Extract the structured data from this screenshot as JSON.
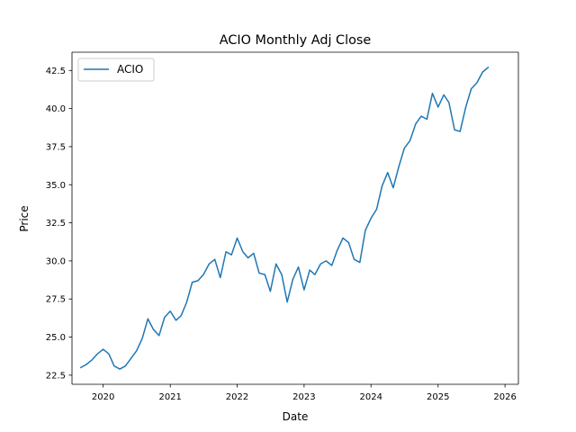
{
  "chart_data": {
    "type": "line",
    "title": "ACIO Monthly Adj Close",
    "xlabel": "Date",
    "ylabel": "Price",
    "x_tick_labels": [
      "2020",
      "2021",
      "2022",
      "2023",
      "2024",
      "2025",
      "2026"
    ],
    "y_tick_labels": [
      "22.5",
      "25.0",
      "27.5",
      "30.0",
      "32.5",
      "35.0",
      "37.5",
      "40.0",
      "42.5"
    ],
    "xlim": [
      "2019-07-15",
      "2026-03-15"
    ],
    "ylim": [
      21.9,
      43.7
    ],
    "grid": false,
    "legend_position": "top-left",
    "series": [
      {
        "name": "ACIO",
        "color": "#1f77b4",
        "points": [
          [
            "2019-09-01",
            23.0
          ],
          [
            "2019-10-01",
            23.2
          ],
          [
            "2019-11-01",
            23.5
          ],
          [
            "2019-12-01",
            23.9
          ],
          [
            "2020-01-01",
            24.2
          ],
          [
            "2020-02-01",
            23.9
          ],
          [
            "2020-03-01",
            23.1
          ],
          [
            "2020-04-01",
            22.9
          ],
          [
            "2020-05-01",
            23.1
          ],
          [
            "2020-06-01",
            23.6
          ],
          [
            "2020-07-01",
            24.1
          ],
          [
            "2020-08-01",
            24.9
          ],
          [
            "2020-09-01",
            26.2
          ],
          [
            "2020-10-01",
            25.5
          ],
          [
            "2020-11-01",
            25.1
          ],
          [
            "2020-12-01",
            26.3
          ],
          [
            "2021-01-01",
            26.7
          ],
          [
            "2021-02-01",
            26.1
          ],
          [
            "2021-03-01",
            26.4
          ],
          [
            "2021-04-01",
            27.3
          ],
          [
            "2021-05-01",
            28.6
          ],
          [
            "2021-06-01",
            28.7
          ],
          [
            "2021-07-01",
            29.1
          ],
          [
            "2021-08-01",
            29.8
          ],
          [
            "2021-09-01",
            30.1
          ],
          [
            "2021-10-01",
            28.9
          ],
          [
            "2021-11-01",
            30.6
          ],
          [
            "2021-12-01",
            30.4
          ],
          [
            "2022-01-01",
            31.5
          ],
          [
            "2022-02-01",
            30.6
          ],
          [
            "2022-03-01",
            30.2
          ],
          [
            "2022-04-01",
            30.5
          ],
          [
            "2022-05-01",
            29.2
          ],
          [
            "2022-06-01",
            29.1
          ],
          [
            "2022-07-01",
            28.0
          ],
          [
            "2022-08-01",
            29.8
          ],
          [
            "2022-09-01",
            29.1
          ],
          [
            "2022-10-01",
            27.3
          ],
          [
            "2022-11-01",
            28.8
          ],
          [
            "2022-12-01",
            29.6
          ],
          [
            "2023-01-01",
            28.1
          ],
          [
            "2023-02-01",
            29.4
          ],
          [
            "2023-03-01",
            29.1
          ],
          [
            "2023-04-01",
            29.8
          ],
          [
            "2023-05-01",
            30.0
          ],
          [
            "2023-06-01",
            29.7
          ],
          [
            "2023-07-01",
            30.7
          ],
          [
            "2023-08-01",
            31.5
          ],
          [
            "2023-09-01",
            31.2
          ],
          [
            "2023-10-01",
            30.1
          ],
          [
            "2023-11-01",
            29.9
          ],
          [
            "2023-12-01",
            32.0
          ],
          [
            "2024-01-01",
            32.8
          ],
          [
            "2024-02-01",
            33.4
          ],
          [
            "2024-03-01",
            34.9
          ],
          [
            "2024-04-01",
            35.8
          ],
          [
            "2024-05-01",
            34.8
          ],
          [
            "2024-06-01",
            36.2
          ],
          [
            "2024-07-01",
            37.4
          ],
          [
            "2024-08-01",
            37.9
          ],
          [
            "2024-09-01",
            39.0
          ],
          [
            "2024-10-01",
            39.5
          ],
          [
            "2024-11-01",
            39.3
          ],
          [
            "2024-12-01",
            41.0
          ],
          [
            "2025-01-01",
            40.1
          ],
          [
            "2025-02-01",
            40.9
          ],
          [
            "2025-03-01",
            40.4
          ],
          [
            "2025-04-01",
            38.6
          ],
          [
            "2025-05-01",
            38.5
          ],
          [
            "2025-06-01",
            40.1
          ],
          [
            "2025-07-01",
            41.3
          ],
          [
            "2025-08-01",
            41.7
          ],
          [
            "2025-09-01",
            42.4
          ],
          [
            "2025-10-01",
            42.7
          ]
        ]
      }
    ]
  }
}
